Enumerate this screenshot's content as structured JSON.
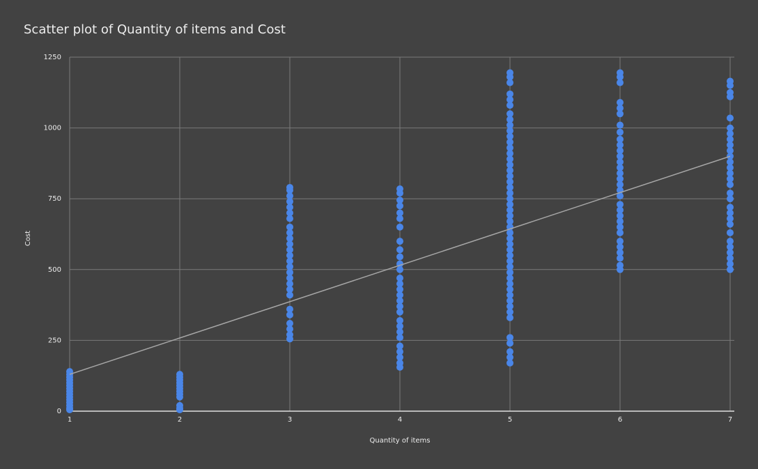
{
  "chart_data": {
    "type": "scatter",
    "title": "Scatter plot of Quantity of items and Cost",
    "x_label": "Quantity of items",
    "y_label": "Cost",
    "xlim": [
      1,
      7
    ],
    "xticks": [
      1,
      2,
      3,
      4,
      5,
      6,
      7
    ],
    "ylim": [
      0,
      1250
    ],
    "yticks": [
      0,
      250,
      500,
      750,
      1000,
      1250
    ],
    "grid": true,
    "series": [
      {
        "color": "#4a86e8",
        "x": [
          1,
          1,
          1,
          1,
          1,
          1,
          1,
          1,
          1,
          1,
          1,
          1,
          1,
          1,
          1
        ],
        "values": [
          140,
          130,
          120,
          110,
          100,
          90,
          80,
          70,
          60,
          50,
          40,
          30,
          20,
          10,
          5
        ]
      },
      {
        "color": "#4a86e8",
        "x": [
          2,
          2,
          2,
          2,
          2,
          2,
          2,
          2,
          2,
          2,
          2,
          2
        ],
        "values": [
          130,
          120,
          110,
          100,
          90,
          80,
          70,
          60,
          50,
          20,
          10,
          5
        ]
      },
      {
        "color": "#4a86e8",
        "x": [
          3,
          3,
          3,
          3,
          3,
          3,
          3,
          3,
          3,
          3,
          3,
          3,
          3,
          3,
          3,
          3,
          3,
          3,
          3,
          3,
          3,
          3,
          3,
          3,
          3,
          3
        ],
        "values": [
          790,
          780,
          760,
          740,
          720,
          700,
          680,
          650,
          630,
          610,
          590,
          570,
          550,
          530,
          510,
          490,
          470,
          450,
          430,
          410,
          360,
          340,
          310,
          290,
          270,
          255
        ]
      },
      {
        "color": "#4a86e8",
        "x": [
          4,
          4,
          4,
          4,
          4,
          4,
          4,
          4,
          4,
          4,
          4,
          4,
          4,
          4,
          4,
          4,
          4,
          4,
          4,
          4,
          4,
          4,
          4,
          4,
          4,
          4,
          4,
          4
        ],
        "values": [
          785,
          770,
          745,
          725,
          700,
          680,
          650,
          600,
          570,
          545,
          520,
          500,
          470,
          450,
          430,
          410,
          390,
          370,
          350,
          320,
          300,
          280,
          260,
          230,
          210,
          190,
          170,
          155
        ]
      },
      {
        "color": "#4a86e8",
        "x": [
          5,
          5,
          5,
          5,
          5,
          5,
          5,
          5,
          5,
          5,
          5,
          5,
          5,
          5,
          5,
          5,
          5,
          5,
          5,
          5,
          5,
          5,
          5,
          5,
          5,
          5,
          5,
          5,
          5,
          5,
          5,
          5,
          5,
          5,
          5,
          5,
          5,
          5,
          5,
          5,
          5,
          5,
          5,
          5,
          5,
          5,
          5,
          5
        ],
        "values": [
          1195,
          1180,
          1160,
          1120,
          1100,
          1080,
          1050,
          1030,
          1010,
          990,
          970,
          950,
          930,
          910,
          890,
          870,
          850,
          830,
          810,
          790,
          770,
          750,
          730,
          710,
          690,
          670,
          650,
          630,
          610,
          590,
          570,
          550,
          530,
          510,
          490,
          470,
          450,
          430,
          410,
          390,
          370,
          350,
          330,
          260,
          240,
          210,
          190,
          170
        ]
      },
      {
        "color": "#4a86e8",
        "x": [
          6,
          6,
          6,
          6,
          6,
          6,
          6,
          6,
          6,
          6,
          6,
          6,
          6,
          6,
          6,
          6,
          6,
          6,
          6,
          6,
          6,
          6,
          6,
          6,
          6,
          6,
          6,
          6,
          6,
          6,
          6
        ],
        "values": [
          1195,
          1180,
          1160,
          1090,
          1070,
          1050,
          1010,
          985,
          960,
          940,
          920,
          900,
          880,
          860,
          840,
          820,
          800,
          780,
          760,
          730,
          710,
          690,
          670,
          650,
          630,
          600,
          580,
          560,
          540,
          515,
          500
        ]
      },
      {
        "color": "#4a86e8",
        "x": [
          7,
          7,
          7,
          7,
          7,
          7,
          7,
          7,
          7,
          7,
          7,
          7,
          7,
          7,
          7,
          7,
          7,
          7,
          7,
          7,
          7,
          7,
          7,
          7,
          7,
          7,
          7,
          7,
          7
        ],
        "values": [
          1165,
          1150,
          1125,
          1110,
          1035,
          1000,
          980,
          960,
          940,
          920,
          900,
          880,
          860,
          840,
          820,
          800,
          770,
          750,
          720,
          700,
          680,
          660,
          630,
          600,
          580,
          560,
          540,
          520,
          500
        ]
      }
    ],
    "trendline": {
      "color": "#a6a6a6",
      "x": [
        1,
        7
      ],
      "values": [
        130,
        900
      ]
    }
  }
}
